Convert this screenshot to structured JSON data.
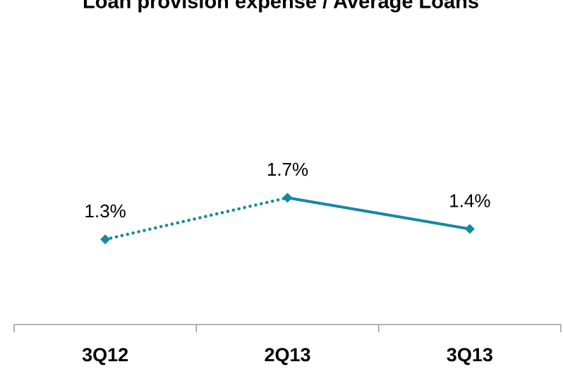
{
  "chart_data": {
    "type": "line",
    "title": "Loan provision expense / Average Loans",
    "categories": [
      "3Q12",
      "2Q13",
      "3Q13"
    ],
    "values": [
      1.3,
      1.7,
      1.4
    ],
    "value_labels": [
      "1.3%",
      "1.7%",
      "1.4%"
    ],
    "color": "#1688a0",
    "segment_styles": [
      "dotted",
      "solid"
    ]
  }
}
